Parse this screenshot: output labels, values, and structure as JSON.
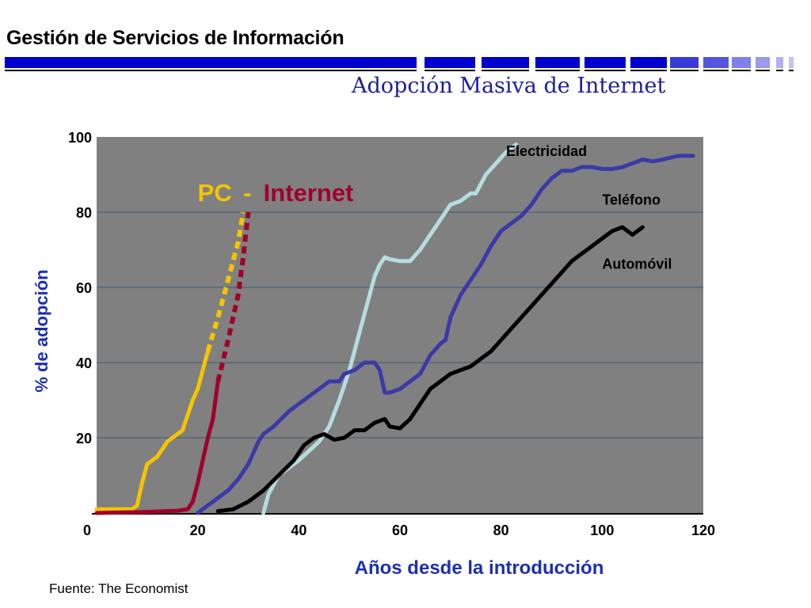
{
  "header": {
    "title": "Gestión de Servicios de Información",
    "subtitle": "Adopción Masiva de Internet",
    "bar_color": "#0000cc"
  },
  "footer": {
    "source": "Fuente: The Economist"
  },
  "chart_data": {
    "type": "line",
    "xlabel": "Años desde la introducción",
    "ylabel": "% de adopción",
    "xlim": [
      0,
      120
    ],
    "ylim": [
      0,
      100
    ],
    "x_ticks": [
      0,
      20,
      40,
      60,
      80,
      100,
      120
    ],
    "y_ticks": [
      20,
      40,
      60,
      80,
      100
    ],
    "y_tick_labels": [
      "20",
      "40",
      "60",
      "80",
      "100"
    ],
    "x_tick_labels": [
      "0",
      "20",
      "40",
      "60",
      "80",
      "100",
      "120"
    ],
    "grid": "horizontal",
    "plot_background": "#808080",
    "series": [
      {
        "name": "PC",
        "color": "#f5c400",
        "style": "solid",
        "points": [
          [
            0,
            1
          ],
          [
            7,
            1
          ],
          [
            8,
            2
          ],
          [
            9,
            8
          ],
          [
            10,
            13
          ],
          [
            11,
            14
          ],
          [
            12,
            15
          ],
          [
            13,
            17
          ],
          [
            14,
            19
          ],
          [
            15,
            20
          ],
          [
            16,
            21
          ],
          [
            17,
            22
          ],
          [
            18,
            26
          ],
          [
            19,
            30
          ],
          [
            20,
            33
          ],
          [
            21,
            38
          ],
          [
            22,
            43
          ]
        ]
      },
      {
        "name": "PC",
        "color": "#f5c400",
        "style": "dashed",
        "points": [
          [
            22,
            43
          ],
          [
            24,
            52
          ],
          [
            26,
            62
          ],
          [
            28,
            72
          ],
          [
            29,
            80
          ]
        ]
      },
      {
        "name": "Internet",
        "color": "#a0002a",
        "style": "solid",
        "points": [
          [
            0,
            0
          ],
          [
            10,
            0.3
          ],
          [
            16,
            0.6
          ],
          [
            18,
            1
          ],
          [
            19,
            3
          ],
          [
            20,
            8
          ],
          [
            21,
            14
          ],
          [
            22,
            20
          ],
          [
            23,
            25
          ],
          [
            24,
            35
          ]
        ]
      },
      {
        "name": "Internet",
        "color": "#a0002a",
        "style": "dashed",
        "points": [
          [
            24,
            35
          ],
          [
            26,
            46
          ],
          [
            28,
            58
          ],
          [
            29,
            68
          ],
          [
            30,
            80
          ]
        ]
      },
      {
        "name": "Electricidad",
        "color": "#b5dde0",
        "style": "solid",
        "points": [
          [
            33,
            0
          ],
          [
            34,
            5
          ],
          [
            36,
            10
          ],
          [
            40,
            14
          ],
          [
            44,
            19
          ],
          [
            46,
            23
          ],
          [
            48,
            30
          ],
          [
            50,
            38
          ],
          [
            52,
            48
          ],
          [
            54,
            58
          ],
          [
            55,
            63
          ],
          [
            56,
            66
          ],
          [
            57,
            68
          ],
          [
            58,
            67.5
          ],
          [
            60,
            67
          ],
          [
            62,
            67
          ],
          [
            64,
            70
          ],
          [
            66,
            74
          ],
          [
            68,
            78
          ],
          [
            70,
            82
          ],
          [
            72,
            83
          ],
          [
            74,
            85
          ],
          [
            75,
            85
          ],
          [
            77,
            90
          ],
          [
            79,
            93
          ],
          [
            81,
            96
          ],
          [
            83,
            98
          ]
        ]
      },
      {
        "name": "Teléfono",
        "color": "#3a3aa8",
        "style": "solid",
        "points": [
          [
            20,
            0
          ],
          [
            22,
            2
          ],
          [
            24,
            4
          ],
          [
            26,
            6
          ],
          [
            28,
            9
          ],
          [
            30,
            13
          ],
          [
            32,
            19
          ],
          [
            33,
            21
          ],
          [
            35,
            23
          ],
          [
            38,
            27
          ],
          [
            41,
            30
          ],
          [
            43,
            32
          ],
          [
            46,
            35
          ],
          [
            48,
            35
          ],
          [
            49,
            37
          ],
          [
            51,
            38
          ],
          [
            53,
            40
          ],
          [
            55,
            40
          ],
          [
            56,
            38
          ],
          [
            57,
            32
          ],
          [
            58,
            32
          ],
          [
            60,
            33
          ],
          [
            62,
            35
          ],
          [
            64,
            37
          ],
          [
            66,
            42
          ],
          [
            68,
            45
          ],
          [
            69,
            46
          ],
          [
            70,
            52
          ],
          [
            72,
            58
          ],
          [
            74,
            62
          ],
          [
            76,
            66
          ],
          [
            78,
            71
          ],
          [
            80,
            75
          ],
          [
            82,
            77
          ],
          [
            84,
            79
          ],
          [
            86,
            82
          ],
          [
            88,
            86
          ],
          [
            90,
            89
          ],
          [
            92,
            91
          ],
          [
            94,
            91
          ],
          [
            96,
            92
          ],
          [
            98,
            92
          ],
          [
            100,
            91.5
          ],
          [
            102,
            91.5
          ],
          [
            104,
            92
          ],
          [
            106,
            93
          ],
          [
            108,
            94
          ],
          [
            110,
            93.5
          ],
          [
            112,
            94
          ],
          [
            115,
            95
          ],
          [
            118,
            95
          ]
        ]
      },
      {
        "name": "Automóvil",
        "color": "#000000",
        "style": "solid",
        "points": [
          [
            24,
            0.5
          ],
          [
            27,
            1
          ],
          [
            30,
            3
          ],
          [
            33,
            6
          ],
          [
            36,
            10
          ],
          [
            39,
            14
          ],
          [
            41,
            18
          ],
          [
            43,
            20
          ],
          [
            45,
            21
          ],
          [
            47,
            19.5
          ],
          [
            49,
            20
          ],
          [
            51,
            22
          ],
          [
            53,
            22
          ],
          [
            55,
            24
          ],
          [
            57,
            25
          ],
          [
            58,
            23
          ],
          [
            60,
            22.5
          ],
          [
            62,
            25
          ],
          [
            64,
            29
          ],
          [
            66,
            33
          ],
          [
            68,
            35
          ],
          [
            70,
            37
          ],
          [
            72,
            38
          ],
          [
            74,
            39
          ],
          [
            76,
            41
          ],
          [
            78,
            43
          ],
          [
            80,
            46
          ],
          [
            82,
            49
          ],
          [
            84,
            52
          ],
          [
            86,
            55
          ],
          [
            88,
            58
          ],
          [
            90,
            61
          ],
          [
            92,
            64
          ],
          [
            94,
            67
          ],
          [
            96,
            69
          ],
          [
            98,
            71
          ],
          [
            100,
            73
          ],
          [
            102,
            75
          ],
          [
            104,
            76
          ],
          [
            106,
            74
          ],
          [
            108,
            76
          ]
        ]
      }
    ],
    "labels": [
      {
        "text": "Electricidad",
        "x": 81,
        "y": 95
      },
      {
        "text": "Teléfono",
        "x": 100,
        "y": 82
      },
      {
        "text": "Automóvil",
        "x": 100,
        "y": 65
      }
    ],
    "big_labels": [
      {
        "text": "PC",
        "x": 20,
        "y": 83,
        "color": "#f5c400"
      },
      {
        "text": "-",
        "x": 29,
        "y": 83,
        "color": "#f5c400"
      },
      {
        "text": "Internet",
        "x": 33,
        "y": 83,
        "color": "#a0002a"
      }
    ]
  }
}
